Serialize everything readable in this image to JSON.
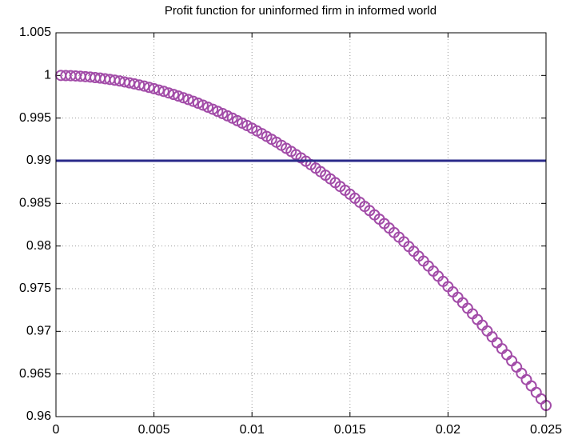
{
  "chart_data": {
    "type": "scatter",
    "title": "Profit function for uninformed firm in informed world",
    "xlim": [
      0,
      0.025
    ],
    "xticks": [
      0,
      0.005,
      0.01,
      0.015,
      0.02,
      0.025
    ],
    "ylim": [
      0.96,
      1.005
    ],
    "yticks": [
      0.96,
      0.965,
      0.97,
      0.975,
      0.98,
      0.985,
      0.99,
      0.995,
      1,
      1.005
    ],
    "grid": true,
    "series": [
      {
        "type": "scatter",
        "color": "#a24ca8",
        "x": [
          0.00025,
          0.0005,
          0.00075,
          0.001,
          0.00125,
          0.0015,
          0.00175,
          0.002,
          0.00225,
          0.0025,
          0.00275,
          0.003,
          0.00325,
          0.0035,
          0.00375,
          0.004,
          0.00425,
          0.0045,
          0.00475,
          0.005,
          0.00525,
          0.0055,
          0.00575,
          0.006,
          0.00625,
          0.0065,
          0.00675,
          0.007,
          0.00725,
          0.0075,
          0.00775,
          0.008,
          0.00825,
          0.0085,
          0.00875,
          0.009,
          0.00925,
          0.0095,
          0.00975,
          0.01,
          0.01025,
          0.0105,
          0.01075,
          0.011,
          0.01125,
          0.0115,
          0.01175,
          0.012,
          0.01225,
          0.0125,
          0.01275,
          0.013,
          0.01325,
          0.0135,
          0.01375,
          0.014,
          0.01425,
          0.0145,
          0.01475,
          0.015,
          0.01525,
          0.0155,
          0.01575,
          0.016,
          0.01625,
          0.0165,
          0.01675,
          0.017,
          0.01725,
          0.0175,
          0.01775,
          0.018,
          0.01825,
          0.0185,
          0.01875,
          0.019,
          0.01925,
          0.0195,
          0.01975,
          0.02,
          0.02025,
          0.0205,
          0.02075,
          0.021,
          0.02125,
          0.0215,
          0.02175,
          0.022,
          0.02225,
          0.0225,
          0.02275,
          0.023,
          0.02325,
          0.0235,
          0.02375,
          0.024,
          0.02425,
          0.0245,
          0.02475,
          0.025
        ],
        "values": [
          1.0,
          0.99998,
          0.99997,
          0.99994,
          0.9999,
          0.99986,
          0.99981,
          0.99975,
          0.99969,
          0.99961,
          0.99953,
          0.99944,
          0.99935,
          0.99924,
          0.99913,
          0.99901,
          0.99888,
          0.99875,
          0.9986,
          0.99845,
          0.99829,
          0.99813,
          0.99795,
          0.99777,
          0.99758,
          0.99738,
          0.99718,
          0.99697,
          0.99675,
          0.99652,
          0.99628,
          0.99604,
          0.99579,
          0.99553,
          0.99526,
          0.99499,
          0.9947,
          0.99441,
          0.99412,
          0.99381,
          0.9935,
          0.99318,
          0.99285,
          0.99251,
          0.99217,
          0.99181,
          0.99145,
          0.99109,
          0.99071,
          0.99033,
          0.98994,
          0.98954,
          0.98913,
          0.98872,
          0.9883,
          0.98787,
          0.98743,
          0.98698,
          0.98653,
          0.98607,
          0.9856,
          0.98513,
          0.98464,
          0.98415,
          0.98365,
          0.98315,
          0.98263,
          0.98211,
          0.98158,
          0.98104,
          0.9805,
          0.97994,
          0.97938,
          0.97881,
          0.97824,
          0.97765,
          0.97706,
          0.97646,
          0.97585,
          0.97524,
          0.97462,
          0.97398,
          0.97335,
          0.9727,
          0.97205,
          0.97138,
          0.97072,
          0.97004,
          0.96935,
          0.96866,
          0.96796,
          0.96725,
          0.96654,
          0.96581,
          0.96508,
          0.96434,
          0.9636,
          0.96284,
          0.96208,
          0.96131
        ]
      },
      {
        "type": "line",
        "color": "#2a2a8a",
        "x": [
          0,
          0.025
        ],
        "values": [
          0.99,
          0.99
        ]
      }
    ]
  }
}
